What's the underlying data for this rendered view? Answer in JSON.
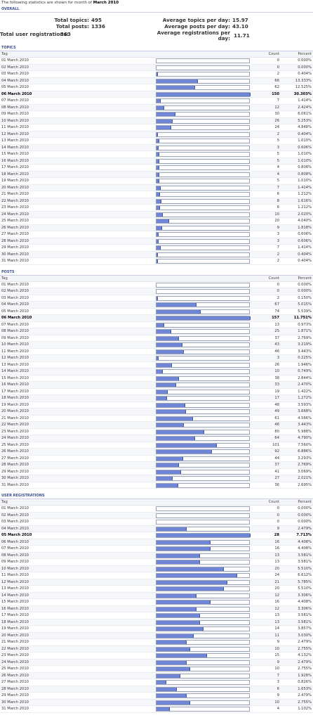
{
  "intro": {
    "prefix": "The following statistics are shown for month of",
    "month": "March 2010"
  },
  "overall": {
    "heading": "OVERALL",
    "total_topics_label": "Total topics:",
    "total_topics": "495",
    "total_posts_label": "Total posts:",
    "total_posts": "1336",
    "total_users_label": "Total user registrations:",
    "total_users": "363",
    "avg_topics_label": "Average topics per day:",
    "avg_topics": "15.97",
    "avg_posts_label": "Average posts per day:",
    "avg_posts": "43.10",
    "avg_regs_label_1": "Average registrations per",
    "avg_regs_label_2": "day:",
    "avg_regs": "11.71"
  },
  "columns": {
    "tag": "Tag",
    "count": "Count",
    "percent": "Percent"
  },
  "sections": [
    {
      "key": "topics",
      "title": "TOPICS",
      "peak": 5,
      "rows": [
        {
          "tag": "01 March 2010",
          "count": "0",
          "percent": "0.000%",
          "frac": 0
        },
        {
          "tag": "02 March 2010",
          "count": "0",
          "percent": "0.000%",
          "frac": 0
        },
        {
          "tag": "03 March 2010",
          "count": "2",
          "percent": "0.404%",
          "frac": 0.0133
        },
        {
          "tag": "04 March 2010",
          "count": "66",
          "percent": "13.333%",
          "frac": 0.44
        },
        {
          "tag": "05 March 2010",
          "count": "62",
          "percent": "12.525%",
          "frac": 0.4133
        },
        {
          "tag": "06 March 2010",
          "count": "150",
          "percent": "30.303%",
          "frac": 1
        },
        {
          "tag": "07 March 2010",
          "count": "7",
          "percent": "1.414%",
          "frac": 0.0467
        },
        {
          "tag": "08 March 2010",
          "count": "12",
          "percent": "2.424%",
          "frac": 0.08
        },
        {
          "tag": "09 March 2010",
          "count": "30",
          "percent": "6.061%",
          "frac": 0.2
        },
        {
          "tag": "10 March 2010",
          "count": "26",
          "percent": "5.253%",
          "frac": 0.1733
        },
        {
          "tag": "11 March 2010",
          "count": "24",
          "percent": "4.848%",
          "frac": 0.16
        },
        {
          "tag": "12 March 2010",
          "count": "2",
          "percent": "0.404%",
          "frac": 0.0133
        },
        {
          "tag": "13 March 2010",
          "count": "5",
          "percent": "1.010%",
          "frac": 0.0333
        },
        {
          "tag": "14 March 2010",
          "count": "3",
          "percent": "0.606%",
          "frac": 0.02
        },
        {
          "tag": "15 March 2010",
          "count": "5",
          "percent": "1.010%",
          "frac": 0.0333
        },
        {
          "tag": "16 March 2010",
          "count": "5",
          "percent": "1.010%",
          "frac": 0.0333
        },
        {
          "tag": "17 March 2010",
          "count": "4",
          "percent": "0.808%",
          "frac": 0.0267
        },
        {
          "tag": "18 March 2010",
          "count": "4",
          "percent": "0.808%",
          "frac": 0.0267
        },
        {
          "tag": "19 March 2010",
          "count": "5",
          "percent": "1.010%",
          "frac": 0.0333
        },
        {
          "tag": "20 March 2010",
          "count": "7",
          "percent": "1.414%",
          "frac": 0.0467
        },
        {
          "tag": "21 March 2010",
          "count": "6",
          "percent": "1.212%",
          "frac": 0.04
        },
        {
          "tag": "22 March 2010",
          "count": "8",
          "percent": "1.616%",
          "frac": 0.0533
        },
        {
          "tag": "23 March 2010",
          "count": "6",
          "percent": "1.212%",
          "frac": 0.04
        },
        {
          "tag": "24 March 2010",
          "count": "10",
          "percent": "2.020%",
          "frac": 0.0667
        },
        {
          "tag": "25 March 2010",
          "count": "20",
          "percent": "4.040%",
          "frac": 0.1333
        },
        {
          "tag": "26 March 2010",
          "count": "9",
          "percent": "1.818%",
          "frac": 0.06
        },
        {
          "tag": "27 March 2010",
          "count": "3",
          "percent": "0.606%",
          "frac": 0.02
        },
        {
          "tag": "28 March 2010",
          "count": "3",
          "percent": "0.606%",
          "frac": 0.02
        },
        {
          "tag": "29 March 2010",
          "count": "7",
          "percent": "1.414%",
          "frac": 0.0467
        },
        {
          "tag": "30 March 2010",
          "count": "2",
          "percent": "0.404%",
          "frac": 0.0133
        },
        {
          "tag": "31 March 2010",
          "count": "2",
          "percent": "0.404%",
          "frac": 0.0133
        }
      ]
    },
    {
      "key": "posts",
      "title": "POSTS",
      "peak": 5,
      "rows": [
        {
          "tag": "01 March 2010",
          "count": "0",
          "percent": "0.000%",
          "frac": 0
        },
        {
          "tag": "02 March 2010",
          "count": "0",
          "percent": "0.000%",
          "frac": 0
        },
        {
          "tag": "03 March 2010",
          "count": "2",
          "percent": "0.150%",
          "frac": 0.0127
        },
        {
          "tag": "04 March 2010",
          "count": "67",
          "percent": "5.015%",
          "frac": 0.4268
        },
        {
          "tag": "05 March 2010",
          "count": "74",
          "percent": "5.539%",
          "frac": 0.4713
        },
        {
          "tag": "06 March 2010",
          "count": "157",
          "percent": "11.751%",
          "frac": 1
        },
        {
          "tag": "07 March 2010",
          "count": "13",
          "percent": "0.973%",
          "frac": 0.0828
        },
        {
          "tag": "08 March 2010",
          "count": "25",
          "percent": "1.871%",
          "frac": 0.1592
        },
        {
          "tag": "09 March 2010",
          "count": "37",
          "percent": "2.769%",
          "frac": 0.2357
        },
        {
          "tag": "10 March 2010",
          "count": "43",
          "percent": "3.219%",
          "frac": 0.2739
        },
        {
          "tag": "11 March 2010",
          "count": "46",
          "percent": "3.443%",
          "frac": 0.293
        },
        {
          "tag": "12 March 2010",
          "count": "3",
          "percent": "0.225%",
          "frac": 0.0191
        },
        {
          "tag": "13 March 2010",
          "count": "26",
          "percent": "1.946%",
          "frac": 0.1656
        },
        {
          "tag": "14 March 2010",
          "count": "10",
          "percent": "0.749%",
          "frac": 0.0637
        },
        {
          "tag": "15 March 2010",
          "count": "38",
          "percent": "2.844%",
          "frac": 0.242
        },
        {
          "tag": "16 March 2010",
          "count": "33",
          "percent": "2.470%",
          "frac": 0.2102
        },
        {
          "tag": "17 March 2010",
          "count": "19",
          "percent": "1.422%",
          "frac": 0.121
        },
        {
          "tag": "18 March 2010",
          "count": "17",
          "percent": "1.272%",
          "frac": 0.1083
        },
        {
          "tag": "19 March 2010",
          "count": "48",
          "percent": "3.593%",
          "frac": 0.3057
        },
        {
          "tag": "20 March 2010",
          "count": "49",
          "percent": "3.668%",
          "frac": 0.3121
        },
        {
          "tag": "21 March 2010",
          "count": "61",
          "percent": "4.566%",
          "frac": 0.3885
        },
        {
          "tag": "22 March 2010",
          "count": "46",
          "percent": "3.443%",
          "frac": 0.293
        },
        {
          "tag": "23 March 2010",
          "count": "80",
          "percent": "5.988%",
          "frac": 0.5096
        },
        {
          "tag": "24 March 2010",
          "count": "64",
          "percent": "4.790%",
          "frac": 0.4076
        },
        {
          "tag": "25 March 2010",
          "count": "101",
          "percent": "7.560%",
          "frac": 0.6433
        },
        {
          "tag": "26 March 2010",
          "count": "92",
          "percent": "6.886%",
          "frac": 0.586
        },
        {
          "tag": "27 March 2010",
          "count": "44",
          "percent": "3.293%",
          "frac": 0.2803
        },
        {
          "tag": "28 March 2010",
          "count": "37",
          "percent": "2.769%",
          "frac": 0.2357
        },
        {
          "tag": "29 March 2010",
          "count": "41",
          "percent": "3.069%",
          "frac": 0.2611
        },
        {
          "tag": "30 March 2010",
          "count": "27",
          "percent": "2.021%",
          "frac": 0.172
        },
        {
          "tag": "31 March 2010",
          "count": "36",
          "percent": "2.695%",
          "frac": 0.2293
        }
      ]
    },
    {
      "key": "users",
      "title": "USER REGISTRATIONS",
      "peak": 4,
      "rows": [
        {
          "tag": "01 March 2010",
          "count": "0",
          "percent": "0.000%",
          "frac": 0
        },
        {
          "tag": "02 March 2010",
          "count": "0",
          "percent": "0.000%",
          "frac": 0
        },
        {
          "tag": "03 March 2010",
          "count": "0",
          "percent": "0.000%",
          "frac": 0
        },
        {
          "tag": "04 March 2010",
          "count": "9",
          "percent": "2.479%",
          "frac": 0.3214
        },
        {
          "tag": "05 March 2010",
          "count": "28",
          "percent": "7.713%",
          "frac": 1
        },
        {
          "tag": "06 March 2010",
          "count": "16",
          "percent": "4.408%",
          "frac": 0.5714
        },
        {
          "tag": "07 March 2010",
          "count": "16",
          "percent": "4.408%",
          "frac": 0.5714
        },
        {
          "tag": "08 March 2010",
          "count": "13",
          "percent": "3.581%",
          "frac": 0.4643
        },
        {
          "tag": "09 March 2010",
          "count": "13",
          "percent": "3.581%",
          "frac": 0.4643
        },
        {
          "tag": "10 March 2010",
          "count": "20",
          "percent": "5.510%",
          "frac": 0.7143
        },
        {
          "tag": "11 March 2010",
          "count": "24",
          "percent": "6.612%",
          "frac": 0.8571
        },
        {
          "tag": "12 March 2010",
          "count": "21",
          "percent": "5.785%",
          "frac": 0.75
        },
        {
          "tag": "13 March 2010",
          "count": "20",
          "percent": "5.510%",
          "frac": 0.7143
        },
        {
          "tag": "14 March 2010",
          "count": "12",
          "percent": "3.306%",
          "frac": 0.4286
        },
        {
          "tag": "15 March 2010",
          "count": "16",
          "percent": "4.408%",
          "frac": 0.5714
        },
        {
          "tag": "16 March 2010",
          "count": "12",
          "percent": "3.306%",
          "frac": 0.4286
        },
        {
          "tag": "17 March 2010",
          "count": "13",
          "percent": "3.581%",
          "frac": 0.4643
        },
        {
          "tag": "18 March 2010",
          "count": "13",
          "percent": "3.581%",
          "frac": 0.4643
        },
        {
          "tag": "19 March 2010",
          "count": "14",
          "percent": "3.857%",
          "frac": 0.5
        },
        {
          "tag": "20 March 2010",
          "count": "11",
          "percent": "3.030%",
          "frac": 0.3929
        },
        {
          "tag": "21 March 2010",
          "count": "9",
          "percent": "2.479%",
          "frac": 0.3214
        },
        {
          "tag": "22 March 2010",
          "count": "10",
          "percent": "2.755%",
          "frac": 0.3571
        },
        {
          "tag": "23 March 2010",
          "count": "15",
          "percent": "4.132%",
          "frac": 0.5357
        },
        {
          "tag": "24 March 2010",
          "count": "9",
          "percent": "2.479%",
          "frac": 0.3214
        },
        {
          "tag": "25 March 2010",
          "count": "10",
          "percent": "2.755%",
          "frac": 0.3571
        },
        {
          "tag": "26 March 2010",
          "count": "7",
          "percent": "1.928%",
          "frac": 0.25
        },
        {
          "tag": "27 March 2010",
          "count": "3",
          "percent": "0.826%",
          "frac": 0.1071
        },
        {
          "tag": "28 March 2010",
          "count": "6",
          "percent": "1.653%",
          "frac": 0.2143
        },
        {
          "tag": "29 March 2010",
          "count": "9",
          "percent": "2.479%",
          "frac": 0.3214
        },
        {
          "tag": "30 March 2010",
          "count": "10",
          "percent": "2.755%",
          "frac": 0.3571
        },
        {
          "tag": "31 March 2010",
          "count": "4",
          "percent": "1.102%",
          "frac": 0.1429
        }
      ]
    }
  ]
}
